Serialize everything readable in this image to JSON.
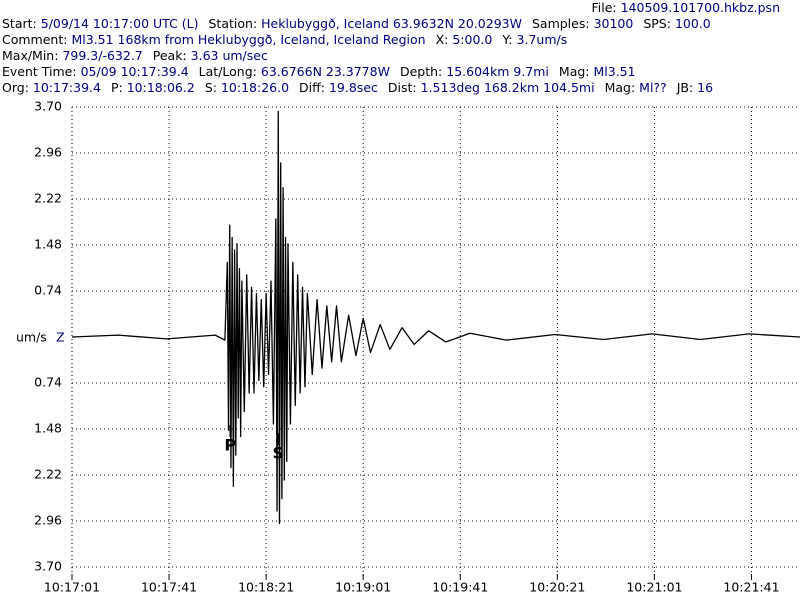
{
  "chart_data": {
    "type": "line",
    "header": [
      [
        {
          "label": "File:",
          "value": "140509.101700.hkbz.psn"
        }
      ],
      [
        {
          "label": "Start:",
          "value": "5/09/14 10:17:00 UTC (L)"
        },
        {
          "label": "Station:",
          "value": "Heklubyggð, Iceland 63.9632N 20.0293W"
        },
        {
          "label": "Samples:",
          "value": "30100"
        },
        {
          "label": "SPS:",
          "value": "100.0"
        }
      ],
      [
        {
          "label": "Comment:",
          "value": "Ml3.51 168km from Heklubyggð, Iceland, Iceland Region"
        },
        {
          "label": "X:",
          "value": "5:00.0"
        },
        {
          "label": "Y:",
          "value": "3.7um/s"
        }
      ],
      [
        {
          "label": "Max/Min:",
          "value": "799.3/-632.7"
        },
        {
          "label": "Peak:",
          "value": "3.63 um/sec"
        }
      ],
      [
        {
          "label": "Event Time:",
          "value": "05/09 10:17:39.4"
        },
        {
          "label": "Lat/Long:",
          "value": "63.6766N 23.3778W"
        },
        {
          "label": "Depth:",
          "value": "15.604km 9.7mi"
        },
        {
          "label": "Mag:",
          "value": "Ml3.51"
        }
      ],
      [
        {
          "label": "Org:",
          "value": "10:17:39.4"
        },
        {
          "label": "P:",
          "value": "10:18:06.2"
        },
        {
          "label": "S:",
          "value": "10:18:26.0"
        },
        {
          "label": "Diff:",
          "value": "19.8sec"
        },
        {
          "label": "Dist:",
          "value": "1.513deg 168.2km 104.5mi"
        },
        {
          "label": "Mag:",
          "value": "Ml??"
        },
        {
          "label": "JB:",
          "value": "16"
        }
      ]
    ],
    "y_label": "um/s",
    "channel": "Z",
    "color": "#000000",
    "grid": true,
    "xlim": [
      37021,
      37321
    ],
    "xticks": [
      {
        "value": 37021,
        "label": "10:17:01"
      },
      {
        "value": 37061,
        "label": "10:17:41"
      },
      {
        "value": 37101,
        "label": "10:18:21"
      },
      {
        "value": 37141,
        "label": "10:19:01"
      },
      {
        "value": 37181,
        "label": "10:19:41"
      },
      {
        "value": 37221,
        "label": "10:20:21"
      },
      {
        "value": 37261,
        "label": "10:21:01"
      },
      {
        "value": 37301,
        "label": "10:21:41"
      }
    ],
    "ylim": [
      -3.7,
      3.7
    ],
    "yticks": [
      {
        "value": 3.7,
        "label": "3.70"
      },
      2.96,
      2.22,
      1.48,
      0.74,
      {
        "value": -0.74,
        "label": "0.74"
      },
      {
        "value": -1.48,
        "label": "1.48"
      },
      {
        "value": -2.22,
        "label": "2.22"
      },
      {
        "value": -2.96,
        "label": "2.96"
      },
      {
        "value": -3.7,
        "label": "3.70"
      }
    ],
    "annotations": [
      {
        "label": "P",
        "x": 37086.2
      },
      {
        "label": "S",
        "x": 37106
      }
    ],
    "x": [
      37021,
      37040,
      37060,
      37080,
      37084,
      37085,
      37085.5,
      37086,
      37086.5,
      37087,
      37087.5,
      37088,
      37088.5,
      37089,
      37089.5,
      37090,
      37090.5,
      37091,
      37092,
      37093,
      37094,
      37095,
      37096,
      37097,
      37098,
      37099,
      37100,
      37101,
      37102,
      37103,
      37104,
      37105,
      37105.5,
      37106,
      37106.5,
      37107,
      37107.5,
      37108,
      37108.5,
      37109,
      37109.5,
      37110,
      37111,
      37112,
      37113,
      37114,
      37115,
      37116,
      37117,
      37118,
      37120,
      37122,
      37124,
      37126,
      37128,
      37130,
      37132,
      37135,
      37138,
      37141,
      37144,
      37148,
      37152,
      37157,
      37162,
      37168,
      37175,
      37185,
      37200,
      37220,
      37240,
      37260,
      37280,
      37300,
      37321
    ],
    "values": [
      0,
      0.03,
      -0.03,
      0.03,
      -0.05,
      1.2,
      -1.5,
      1.8,
      -2.1,
      1.6,
      -2.4,
      1.4,
      -1.9,
      1.5,
      -1.3,
      1.1,
      -1.6,
      0.9,
      -1.2,
      1.0,
      -0.9,
      0.8,
      -0.9,
      0.7,
      -0.7,
      0.6,
      -0.8,
      0.7,
      -0.6,
      0.9,
      -1.4,
      1.9,
      -2.8,
      3.63,
      -3.0,
      2.8,
      -2.6,
      2.4,
      -2.3,
      1.6,
      -2.0,
      1.5,
      -1.4,
      1.2,
      -1.1,
      1.0,
      -0.9,
      0.8,
      -0.8,
      0.7,
      -0.6,
      0.6,
      -0.5,
      0.5,
      -0.4,
      0.5,
      -0.4,
      0.35,
      -0.3,
      0.3,
      -0.25,
      0.2,
      -0.2,
      0.15,
      -0.12,
      0.1,
      -0.08,
      0.06,
      -0.05,
      0.04,
      -0.04,
      0.05,
      -0.04,
      0.05,
      0
    ]
  }
}
